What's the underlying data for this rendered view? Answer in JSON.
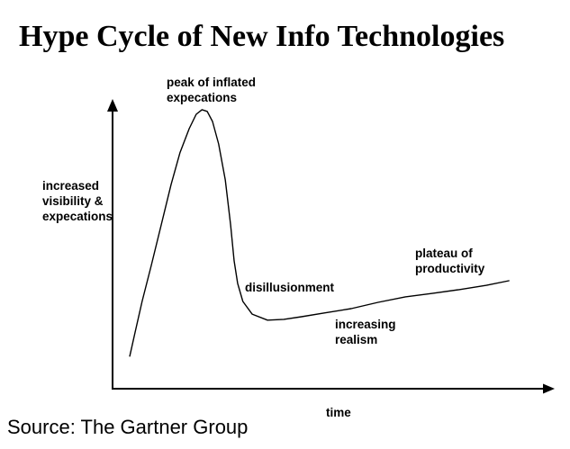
{
  "title": "Hype Cycle of New Info Technologies",
  "source_note": "Source: The Gartner Group",
  "colors": {
    "background": "#ffffff",
    "ink": "#000000"
  },
  "chart_data": {
    "type": "line",
    "title": "Hype Cycle of New Info Technologies",
    "xlabel": "time",
    "ylabel": "increased\nvisibility &\nexpecations",
    "grid": false,
    "ticks": false,
    "axis_style": "arrow-axes-qualitative",
    "x_range": [
      0,
      1
    ],
    "y_range": [
      0,
      1
    ],
    "annotations": [
      {
        "id": "peak",
        "text": "peak of inflated\nexpecations",
        "position_hint": "above-peak"
      },
      {
        "id": "disillusionment",
        "text": "disillusionment",
        "position_hint": "right-of-descent"
      },
      {
        "id": "realism",
        "text": "increasing\nrealism",
        "position_hint": "below-rising-slope"
      },
      {
        "id": "plateau",
        "text": "plateau of\nproductivity",
        "position_hint": "above-curve-end"
      }
    ],
    "series": [
      {
        "name": "hype-cycle-curve",
        "points": [
          [
            0.039,
            0.113
          ],
          [
            0.051,
            0.194
          ],
          [
            0.067,
            0.303
          ],
          [
            0.088,
            0.428
          ],
          [
            0.108,
            0.553
          ],
          [
            0.133,
            0.709
          ],
          [
            0.153,
            0.819
          ],
          [
            0.174,
            0.903
          ],
          [
            0.19,
            0.953
          ],
          [
            0.203,
            0.969
          ],
          [
            0.215,
            0.963
          ],
          [
            0.227,
            0.928
          ],
          [
            0.241,
            0.85
          ],
          [
            0.256,
            0.725
          ],
          [
            0.268,
            0.569
          ],
          [
            0.276,
            0.444
          ],
          [
            0.284,
            0.366
          ],
          [
            0.296,
            0.303
          ],
          [
            0.317,
            0.259
          ],
          [
            0.352,
            0.238
          ],
          [
            0.389,
            0.241
          ],
          [
            0.429,
            0.25
          ],
          [
            0.481,
            0.263
          ],
          [
            0.542,
            0.278
          ],
          [
            0.603,
            0.3
          ],
          [
            0.665,
            0.319
          ],
          [
            0.726,
            0.331
          ],
          [
            0.787,
            0.344
          ],
          [
            0.849,
            0.359
          ],
          [
            0.9,
            0.375
          ]
        ]
      }
    ]
  }
}
